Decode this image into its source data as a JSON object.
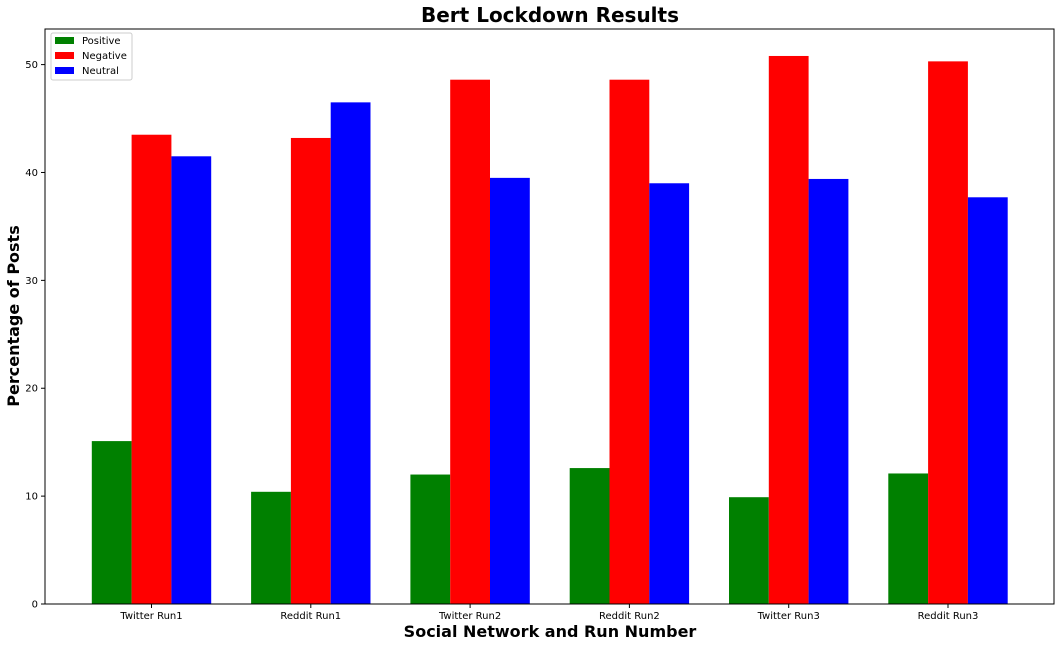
{
  "chart_data": {
    "type": "bar",
    "title": "Bert Lockdown Results",
    "xlabel": "Social Network and Run Number",
    "ylabel": "Percentage of Posts",
    "categories": [
      "Twitter Run1",
      "Reddit Run1",
      "Twitter Run2",
      "Reddit Run2",
      "Twitter Run3",
      "Reddit Run3"
    ],
    "series": [
      {
        "name": "Positive",
        "color": "#008000",
        "values": [
          15.1,
          10.4,
          12.0,
          12.6,
          9.9,
          12.1
        ]
      },
      {
        "name": "Negative",
        "color": "#ff0000",
        "values": [
          43.5,
          43.2,
          48.6,
          48.6,
          50.8,
          50.3
        ]
      },
      {
        "name": "Neutral",
        "color": "#0000ff",
        "values": [
          41.5,
          46.5,
          39.5,
          39.0,
          39.4,
          37.7
        ]
      }
    ],
    "ylim": [
      0,
      53.3
    ],
    "yticks": [
      0,
      10,
      20,
      30,
      40,
      50
    ],
    "legend_position": "top-left",
    "grid": false
  }
}
